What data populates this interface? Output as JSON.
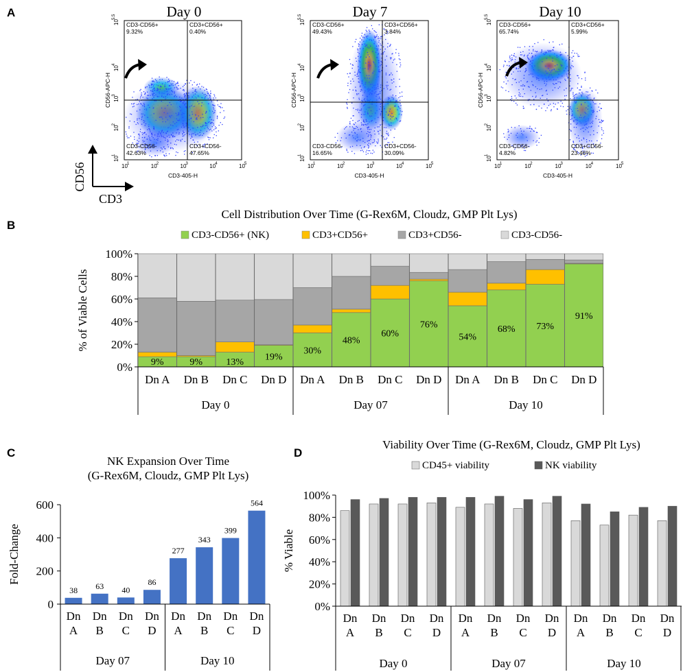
{
  "figure": {
    "panel_labels": [
      "A",
      "B",
      "C",
      "D"
    ]
  },
  "panel_a": {
    "axis_indicator": {
      "y_label": "CD56",
      "x_label": "CD3"
    },
    "plots": [
      {
        "title": "Day 0",
        "x_axis_label": "CD3-405-H",
        "y_axis_label": "CD56-APC-H",
        "x_ticks": [
          "10",
          "10",
          "10",
          "10",
          "10"
        ],
        "x_tick_exponents": [
          "1",
          "2",
          "3",
          "4",
          "5"
        ],
        "y_ticks": [
          "10",
          "10",
          "10",
          "10",
          "10"
        ],
        "y_tick_exponents": [
          "1",
          "2",
          "3",
          "4",
          "5.5"
        ],
        "quadrants": {
          "upper_left": {
            "label": "CD3-CD56+",
            "value": "9.32%"
          },
          "upper_right": {
            "label": "CD3+CD56+",
            "value": "0.40%"
          },
          "lower_left": {
            "label": "CD3-CD56-",
            "value": "42.63%"
          },
          "lower_right": {
            "label": "CD3+CD56-",
            "value": "47.65%"
          }
        }
      },
      {
        "title": "Day 7",
        "x_axis_label": "CD3-405-H",
        "y_axis_label": "CD56-APC-H",
        "x_ticks": [
          "10",
          "10",
          "10",
          "10",
          "10"
        ],
        "x_tick_exponents": [
          "1",
          "2",
          "3",
          "4",
          "5"
        ],
        "y_ticks": [
          "10",
          "10",
          "10",
          "10",
          "10"
        ],
        "y_tick_exponents": [
          "1",
          "2",
          "3",
          "4",
          "5.5"
        ],
        "quadrants": {
          "upper_left": {
            "label": "CD3-CD56+",
            "value": "49.43%"
          },
          "upper_right": {
            "label": "CD3+CD56+",
            "value": "3.84%"
          },
          "lower_left": {
            "label": "CD3-CD56-",
            "value": "16.65%"
          },
          "lower_right": {
            "label": "CD3+CD56-",
            "value": "30.09%"
          }
        }
      },
      {
        "title": "Day 10",
        "x_axis_label": "CD3-405-H",
        "y_axis_label": "CD56-APC-H",
        "x_ticks": [
          "10",
          "10",
          "10",
          "10",
          "10"
        ],
        "x_tick_exponents": [
          "1",
          "2",
          "3",
          "4",
          "5"
        ],
        "y_ticks": [
          "10",
          "10",
          "10",
          "10",
          "10"
        ],
        "y_tick_exponents": [
          "1",
          "2",
          "3",
          "4",
          "5.5"
        ],
        "quadrants": {
          "upper_left": {
            "label": "CD3-CD56+",
            "value": "65.74%"
          },
          "upper_right": {
            "label": "CD3+CD56+",
            "value": "5.99%"
          },
          "lower_left": {
            "label": "CD3-CD56-",
            "value": "4.82%"
          },
          "lower_right": {
            "label": "CD3+CD56-",
            "value": "23.46%"
          }
        }
      }
    ]
  },
  "chart_data": [
    {
      "type": "bar",
      "stacked": true,
      "title": "Cell Distribution Over Time (G-Rex6M, Cloudz, GMP Plt Lys)",
      "ylabel": "% of Viable Cells",
      "ylim": [
        0,
        100
      ],
      "y_ticks": [
        "0%",
        "20%",
        "40%",
        "60%",
        "80%",
        "100%"
      ],
      "legend_position": "top",
      "categories": [
        "Dn A",
        "Dn B",
        "Dn C",
        "Dn D",
        "Dn A",
        "Dn B",
        "Dn C",
        "Dn D",
        "Dn A",
        "Dn B",
        "Dn C",
        "Dn D"
      ],
      "groups": [
        {
          "label": "Day 0",
          "count": 4
        },
        {
          "label": "Day 07",
          "count": 4
        },
        {
          "label": "Day 10",
          "count": 4
        }
      ],
      "series": [
        {
          "name": "CD3-CD56+ (NK)",
          "color": "#92d050",
          "values": [
            9,
            9,
            13,
            19,
            30,
            48,
            60,
            76,
            54,
            68,
            73,
            91
          ]
        },
        {
          "name": "CD3+CD56+",
          "color": "#ffc000",
          "values": [
            4,
            1,
            9,
            0.5,
            7,
            3,
            12,
            1.5,
            12,
            6,
            13,
            0.5
          ]
        },
        {
          "name": "CD3+CD56-",
          "color": "#a6a6a6",
          "values": [
            48,
            48,
            37,
            40,
            33,
            29,
            17,
            6,
            20,
            19,
            9,
            3
          ]
        },
        {
          "name": "CD3-CD56-",
          "color": "#d9d9d9",
          "values": [
            39,
            42,
            41,
            40.5,
            30,
            20,
            11,
            16.5,
            14,
            7,
            5,
            5.5
          ]
        }
      ],
      "data_labels": [
        "9%",
        "9%",
        "13%",
        "19%",
        "30%",
        "48%",
        "60%",
        "76%",
        "54%",
        "68%",
        "73%",
        "91%"
      ]
    },
    {
      "type": "bar",
      "title": "NK Expansion Over Time",
      "subtitle": "(G-Rex6M, Cloudz, GMP Plt Lys)",
      "ylabel": "Fold-Change",
      "ylim": [
        0,
        600
      ],
      "y_ticks": [
        "0",
        "200",
        "400",
        "600"
      ],
      "categories": [
        [
          "Dn",
          "A"
        ],
        [
          "Dn",
          "B"
        ],
        [
          "Dn",
          "C"
        ],
        [
          "Dn",
          "D"
        ],
        [
          "Dn",
          "A"
        ],
        [
          "Dn",
          "B"
        ],
        [
          "Dn",
          "C"
        ],
        [
          "Dn",
          "D"
        ]
      ],
      "groups": [
        {
          "label": "Day 07",
          "count": 4
        },
        {
          "label": "Day 10",
          "count": 4
        }
      ],
      "series": [
        {
          "color": "#4472c4",
          "values": [
            38,
            63,
            40,
            86,
            277,
            343,
            399,
            564
          ]
        }
      ],
      "data_labels": [
        "38",
        "63",
        "40",
        "86",
        "277",
        "343",
        "399",
        "564"
      ]
    },
    {
      "type": "bar",
      "title": "Viability Over Time (G-Rex6M, Cloudz, GMP Plt Lys)",
      "ylabel": "% Viable",
      "ylim": [
        0,
        100
      ],
      "y_ticks": [
        "0%",
        "20%",
        "40%",
        "60%",
        "80%",
        "100%"
      ],
      "legend_position": "top",
      "categories": [
        [
          "Dn",
          "A"
        ],
        [
          "Dn",
          "B"
        ],
        [
          "Dn",
          "C"
        ],
        [
          "Dn",
          "D"
        ],
        [
          "Dn",
          "A"
        ],
        [
          "Dn",
          "B"
        ],
        [
          "Dn",
          "C"
        ],
        [
          "Dn",
          "D"
        ],
        [
          "Dn",
          "A"
        ],
        [
          "Dn",
          "B"
        ],
        [
          "Dn",
          "C"
        ],
        [
          "Dn",
          "D"
        ]
      ],
      "groups": [
        {
          "label": "Day 0",
          "count": 4
        },
        {
          "label": "Day 07",
          "count": 4
        },
        {
          "label": "Day 10",
          "count": 4
        }
      ],
      "series": [
        {
          "name": "CD45+ viability",
          "color": "#d9d9d9",
          "values": [
            86,
            92,
            92,
            93,
            89,
            92,
            88,
            93,
            77,
            73,
            82,
            77
          ]
        },
        {
          "name": "NK viability",
          "color": "#595959",
          "values": [
            96,
            97,
            98,
            98,
            98,
            99,
            96,
            99,
            92,
            85,
            89,
            90
          ]
        }
      ]
    }
  ]
}
